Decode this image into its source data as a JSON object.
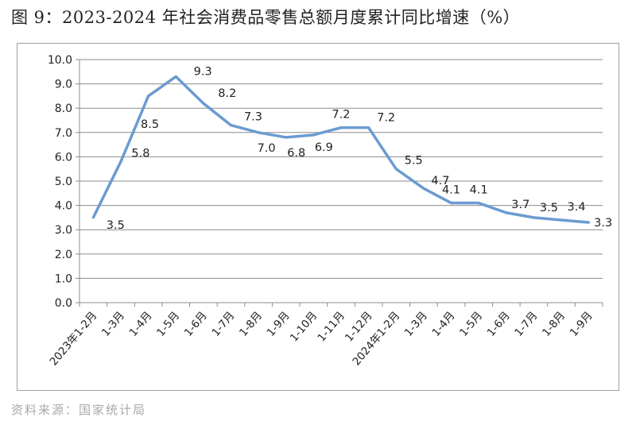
{
  "title": "图 9：2023-2024 年社会消费品零售总额月度累计同比增速（%）",
  "source": "资料来源：国家统计局",
  "chart_data": {
    "type": "line",
    "title": "图 9：2023-2024 年社会消费品零售总额月度累计同比增速（%）",
    "xlabel": "",
    "ylabel": "",
    "ylim": [
      0,
      10
    ],
    "yticks": [
      "0.0",
      "1.0",
      "2.0",
      "3.0",
      "4.0",
      "5.0",
      "6.0",
      "7.0",
      "8.0",
      "9.0",
      "10.0"
    ],
    "grid": true,
    "legend": "none",
    "line_color": "#6b9bd0",
    "categories": [
      "2023年1-2月",
      "1-3月",
      "1-4月",
      "1-5月",
      "1-6月",
      "1-7月",
      "1-8月",
      "1-9月",
      "1-10月",
      "1-11月",
      "1-12月",
      "2024年1-2月",
      "1-3月",
      "1-4月",
      "1-5月",
      "1-6月",
      "1-7月",
      "1-8月",
      "1-9月"
    ],
    "values": [
      3.5,
      5.8,
      8.5,
      9.3,
      8.2,
      7.3,
      7.0,
      6.8,
      6.9,
      7.2,
      7.2,
      5.5,
      4.7,
      4.1,
      4.1,
      3.7,
      3.5,
      3.4,
      3.3
    ],
    "data_labels": [
      "3.5",
      "5.8",
      "8.5",
      "9.3",
      "8.2",
      "7.3",
      "7.0",
      "6.8",
      "6.9",
      "7.2",
      "7.2",
      "5.5",
      "4.7",
      "4.1",
      "4.1",
      "3.7",
      "3.5",
      "3.4",
      "3.3"
    ]
  }
}
